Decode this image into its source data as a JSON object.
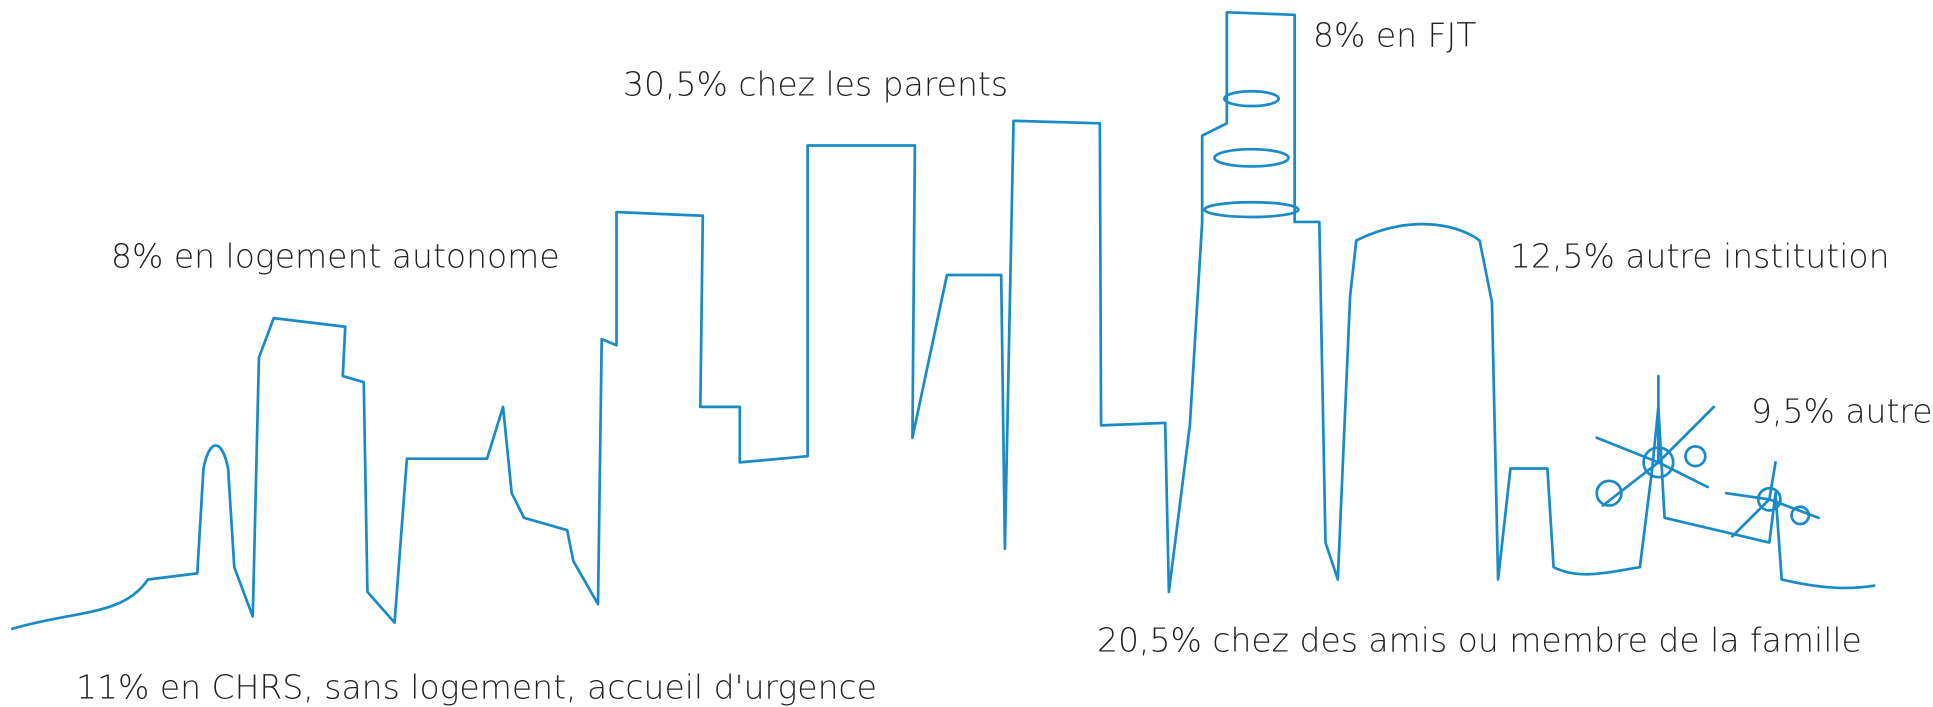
{
  "labels": {
    "fjt": "8% en FJT",
    "parents": "30,5% chez les parents",
    "autonome": "8% en logement autonome",
    "institution": "12,5% autre institution",
    "autre": "9,5% autre",
    "amis": "20,5% chez des amis ou membre de la famille",
    "chrs": "11% en CHRS, sans logement, accueil d'urgence"
  }
}
